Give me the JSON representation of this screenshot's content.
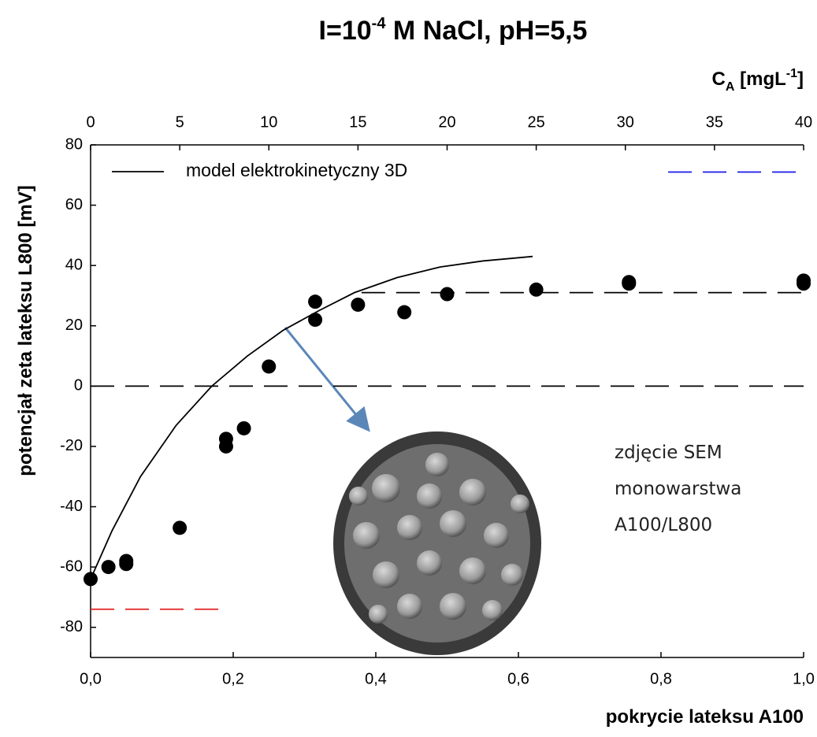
{
  "chart_data": {
    "type": "scatter",
    "title": [
      "I=10",
      "-4",
      " M NaCl, pH=5,5"
    ],
    "x_label": "pokrycie lateksu A100",
    "x2_label": [
      "C",
      "A",
      " [mgL",
      "-1",
      "]"
    ],
    "y_label": "potencjał zeta lateksu L800 [mV]",
    "annotation": [
      "zdjęcie SEM",
      "monowarstwa",
      "A100/L800"
    ],
    "xlim": [
      0,
      1.0
    ],
    "xticks": [
      {
        "value": 0,
        "label": "0,0"
      },
      {
        "value": 0.2,
        "label": "0,2"
      },
      {
        "value": 0.4,
        "label": "0,4"
      },
      {
        "value": 0.6,
        "label": "0,6"
      },
      {
        "value": 0.8,
        "label": "0,8"
      },
      {
        "value": 1.0,
        "label": "1,0"
      }
    ],
    "x2lim": [
      0,
      40
    ],
    "x2ticks": [
      0,
      5,
      10,
      15,
      20,
      25,
      30,
      35,
      40
    ],
    "ylim": [
      -90,
      80
    ],
    "yticks": [
      80,
      60,
      40,
      20,
      0,
      -20,
      -40,
      -60,
      -80
    ],
    "series": [
      {
        "type": "scatter",
        "color": "#000000",
        "x": [
          0.0,
          0.025,
          0.05,
          0.05,
          0.125,
          0.19,
          0.19,
          0.215,
          0.25,
          0.315,
          0.315,
          0.375,
          0.44,
          0.5,
          0.625,
          0.755,
          0.755,
          1.0,
          1.0
        ],
        "values": [
          -64,
          -60,
          -58,
          -59,
          -47,
          -17.5,
          -20,
          -14,
          6.5,
          28,
          22,
          27,
          24.5,
          30.5,
          32,
          34,
          34.5,
          34,
          35
        ]
      },
      {
        "type": "line",
        "name": "model elektrokinetyczny 3D",
        "color": "#000000",
        "x": [
          0,
          0.03,
          0.07,
          0.12,
          0.17,
          0.22,
          0.27,
          0.32,
          0.37,
          0.43,
          0.49,
          0.55,
          0.62
        ],
        "values": [
          -64,
          -48,
          -30,
          -13,
          0,
          10,
          18.5,
          25,
          31,
          36,
          39.5,
          41.5,
          43
        ]
      }
    ],
    "reference_lines": [
      {
        "y": 0,
        "x": [
          0,
          1.0
        ],
        "color": "#000000"
      },
      {
        "y": 31,
        "x": [
          0.38,
          1.0
        ],
        "color": "#000000"
      },
      {
        "y": -74,
        "x": [
          0,
          0.19
        ],
        "color": "#e02020"
      },
      {
        "y": 71,
        "x": [
          0.81,
          1.0
        ],
        "color": "#1a1ae6"
      }
    ]
  }
}
